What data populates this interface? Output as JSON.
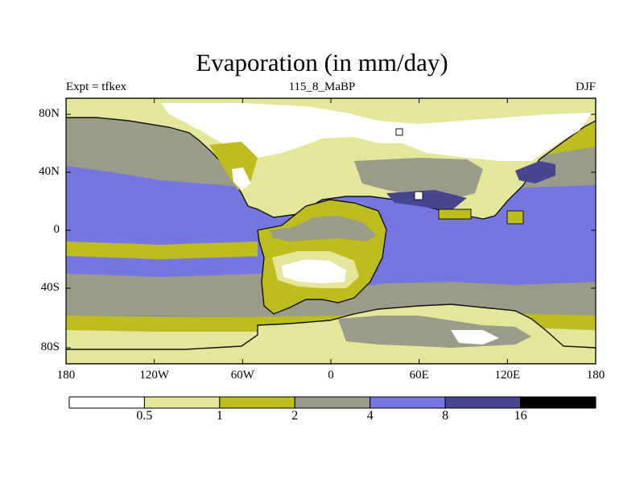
{
  "title": "Evaporation (in mm/day)",
  "subtitle_left": "Expt = tfkex",
  "subtitle_center": "115_8_MaBP",
  "subtitle_right": "DJF",
  "lat_ticks": [
    "80N",
    "40N",
    "0",
    "40S",
    "80S"
  ],
  "lon_ticks": [
    "180",
    "120W",
    "60W",
    "0",
    "60E",
    "120E",
    "180"
  ],
  "colorbar": {
    "colors": [
      "#ffffff",
      "#e4e69a",
      "#bdbe1e",
      "#9b9b8a",
      "#7676e0",
      "#474791",
      "#000000"
    ],
    "labels": [
      "0.5",
      "1",
      "2",
      "4",
      "8",
      "16"
    ]
  },
  "palette": {
    "lt_yellow": "#e4e69a",
    "olive": "#bdbe1e",
    "gray": "#9b9b8a",
    "blue": "#7676e0",
    "dark_blue": "#474791",
    "outline": "#111111"
  }
}
